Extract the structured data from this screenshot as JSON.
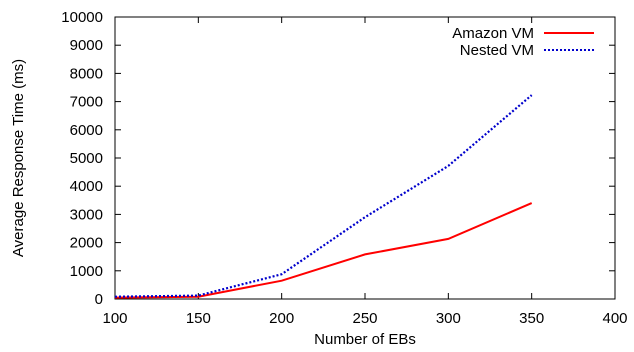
{
  "chart_data": {
    "type": "line",
    "title": "",
    "xlabel": "Number of EBs",
    "ylabel": "Average Response Time (ms)",
    "xlim": [
      100,
      400
    ],
    "ylim": [
      0,
      10000
    ],
    "x_ticks": [
      "100",
      "150",
      "200",
      "250",
      "300",
      "350",
      "400"
    ],
    "y_ticks": [
      "0",
      "1000",
      "2000",
      "3000",
      "4000",
      "5000",
      "6000",
      "7000",
      "8000",
      "9000",
      "10000"
    ],
    "grid": false,
    "legend_position": "top-right",
    "series": [
      {
        "name": "Amazon VM",
        "color": "#ff0000",
        "style": "solid",
        "x": [
          100,
          150,
          200,
          250,
          300,
          350
        ],
        "y": [
          50,
          80,
          650,
          1580,
          2130,
          3400
        ]
      },
      {
        "name": "Nested VM",
        "color": "#0000cc",
        "style": "dotted",
        "x": [
          100,
          150,
          200,
          250,
          300,
          350
        ],
        "y": [
          80,
          120,
          880,
          2900,
          4720,
          7230
        ]
      }
    ]
  }
}
